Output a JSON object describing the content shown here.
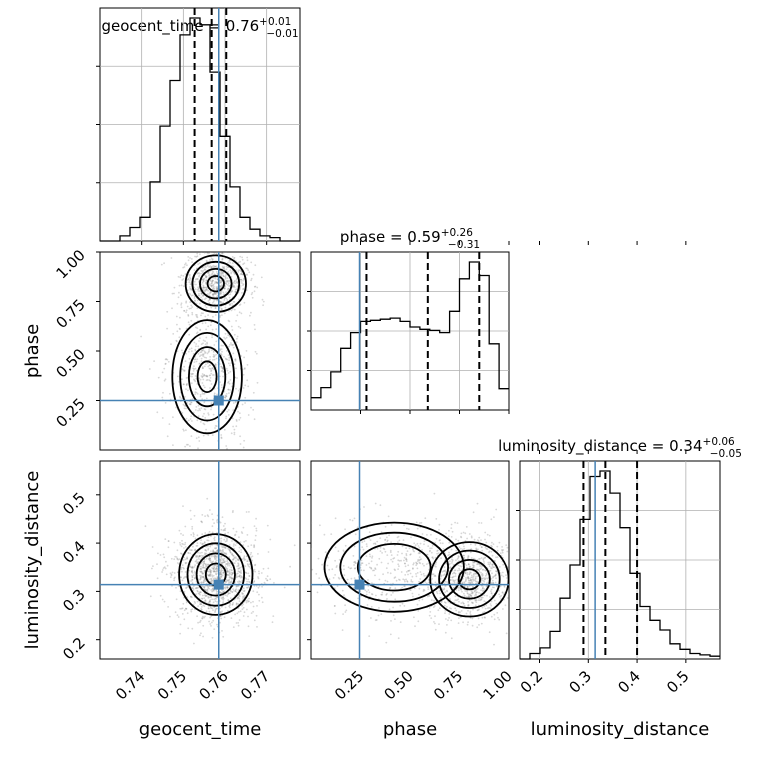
{
  "chart_data": {
    "type": "corner",
    "colors": {
      "truth": "#4682b4",
      "contour": "#000000",
      "points": "#8c8c8c",
      "grid": "#b0b0b0"
    },
    "parameters": [
      {
        "name": "geocent_time",
        "label": "geocent_time",
        "range": [
          0.73,
          0.778
        ],
        "ticks": [
          0.74,
          0.75,
          0.76,
          0.77
        ],
        "tick_labels": [
          "0.74",
          "0.75",
          "0.76",
          "0.77"
        ],
        "truth": 0.7585,
        "median": 0.76,
        "err_plus": "+0.01",
        "err_minus": "−0.01",
        "quantiles": [
          0.7527,
          0.7568,
          0.7603
        ],
        "title_text": "geocent_time = 0.76",
        "histogram": {
          "edges_start": 0.73,
          "bin_width": 0.0024,
          "counts": [
            0,
            0,
            3,
            8,
            14,
            35,
            68,
            95,
            122,
            132,
            128,
            100,
            62,
            32,
            14,
            7,
            3,
            2,
            0,
            0
          ]
        }
      },
      {
        "name": "phase",
        "label": "phase",
        "range": [
          0.0,
          1.0
        ],
        "ticks": [
          0.25,
          0.5,
          0.75,
          1.0
        ],
        "tick_labels": [
          "0.25",
          "0.50",
          "0.75",
          "1.00"
        ],
        "truth": 0.245,
        "median": 0.59,
        "err_plus": "+0.26",
        "err_minus": "−0.31",
        "quantiles": [
          0.28,
          0.59,
          0.85
        ],
        "title_text": "phase = 0.59",
        "histogram": {
          "edges_start": 0.0,
          "bin_width": 0.05,
          "counts": [
            11,
            20,
            34,
            55,
            69,
            79,
            80,
            81,
            82,
            79,
            74,
            72,
            71,
            69,
            88,
            117,
            132,
            120,
            59,
            19
          ]
        }
      },
      {
        "name": "luminosity_distance",
        "label": "luminosity_distance",
        "range": [
          0.16,
          0.57
        ],
        "ticks": [
          0.2,
          0.3,
          0.4,
          0.5
        ],
        "tick_labels": [
          "0.2",
          "0.3",
          "0.4",
          "0.5"
        ],
        "truth": 0.314,
        "median": 0.34,
        "err_plus": "+0.06",
        "err_minus": "−0.05",
        "quantiles": [
          0.29,
          0.335,
          0.4
        ],
        "title_text": "luminosity_distance = 0.34",
        "histogram": {
          "edges_start": 0.16,
          "bin_width": 0.0205,
          "counts": [
            0,
            4,
            8,
            20,
            44,
            68,
            101,
            132,
            136,
            120,
            95,
            62,
            38,
            28,
            21,
            11,
            7,
            4,
            3,
            2
          ]
        }
      }
    ],
    "pairs": [
      {
        "x": "geocent_time",
        "y": "phase",
        "truth": [
          0.7585,
          0.25
        ],
        "modes": [
          {
            "cx": 0.7578,
            "cy": 0.84,
            "sx": 0.0033,
            "sy": 0.065,
            "w": 1.0
          },
          {
            "cx": 0.7557,
            "cy": 0.37,
            "sx": 0.0038,
            "sy": 0.13,
            "w": 0.75
          }
        ]
      },
      {
        "x": "geocent_time",
        "y": "luminosity_distance",
        "truth": [
          0.7585,
          0.314
        ],
        "modes": [
          {
            "cx": 0.7578,
            "cy": 0.335,
            "sx": 0.004,
            "sy": 0.038,
            "w": 1.0
          }
        ]
      },
      {
        "x": "phase",
        "y": "luminosity_distance",
        "truth": [
          0.245,
          0.314
        ],
        "modes": [
          {
            "cx": 0.8,
            "cy": 0.325,
            "sx": 0.09,
            "sy": 0.035,
            "w": 1.0
          },
          {
            "cx": 0.42,
            "cy": 0.35,
            "sx": 0.16,
            "sy": 0.042,
            "w": 0.6
          }
        ]
      }
    ]
  }
}
